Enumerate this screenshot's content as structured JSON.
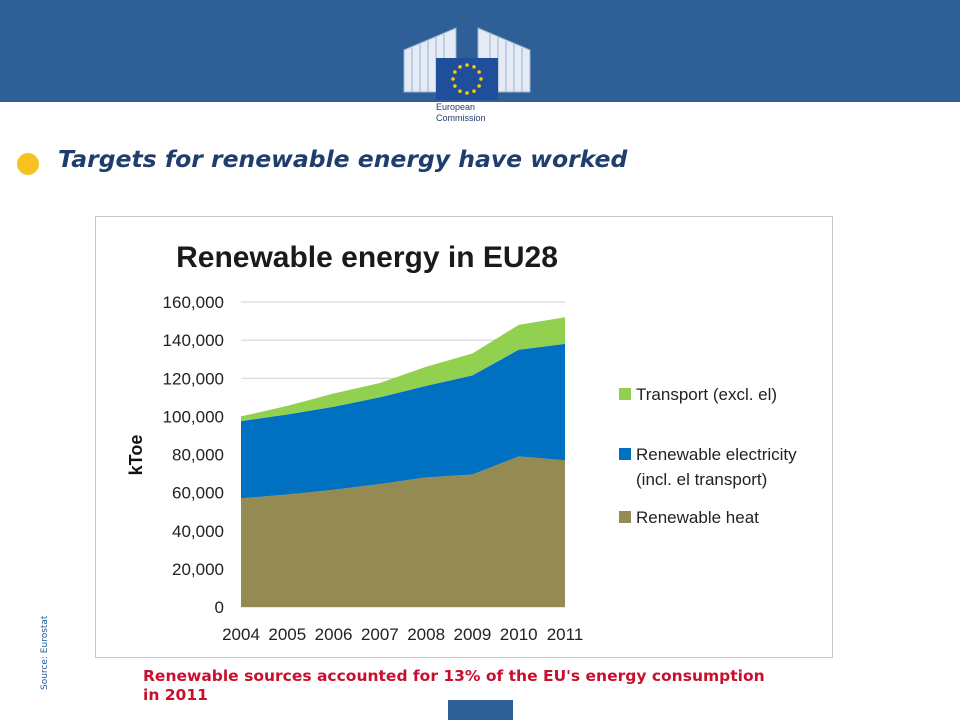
{
  "header": {
    "logo_text": [
      "European",
      "Commission"
    ],
    "colors": {
      "band": "#2f5f97",
      "logo_flag": "#1f4f9a",
      "star": "#ffcc00"
    }
  },
  "slide": {
    "title": "Targets for renewable energy have worked",
    "source": "Source: Eurostat",
    "caption": "Renewable sources accounted for 13% of the EU's energy consumption in 2011",
    "bullet_color": "#f7c11f"
  },
  "chart_data": {
    "type": "area",
    "stacked": true,
    "title": "Renewable energy in EU28",
    "xlabel": "",
    "ylabel": "kToe",
    "categories": [
      "2004",
      "2005",
      "2006",
      "2007",
      "2008",
      "2009",
      "2010",
      "2011"
    ],
    "ylim": [
      0,
      160000
    ],
    "yticks": [
      0,
      20000,
      40000,
      60000,
      80000,
      100000,
      120000,
      140000,
      160000
    ],
    "ytick_labels": [
      "0",
      "20,000",
      "40,000",
      "60,000",
      "80,000",
      "100,000",
      "120,000",
      "140,000",
      "160,000"
    ],
    "grid": "horizontal",
    "legend_position": "right",
    "series": [
      {
        "name": "Renewable heat",
        "color": "#948a54",
        "values": [
          57000,
          59000,
          61500,
          64500,
          68000,
          69500,
          79000,
          77000
        ]
      },
      {
        "name": "Renewable electricity (incl. el transport)",
        "legend_lines": [
          "Renewable electricity",
          "(incl. el transport)"
        ],
        "color": "#0070c0",
        "values": [
          40500,
          42000,
          43500,
          45500,
          48000,
          52000,
          56000,
          61000
        ]
      },
      {
        "name": "Transport (excl. el)",
        "color": "#92d050",
        "values": [
          2500,
          4500,
          7000,
          7500,
          10000,
          11500,
          13000,
          14000
        ]
      }
    ],
    "legend_order": [
      2,
      1,
      0
    ]
  }
}
